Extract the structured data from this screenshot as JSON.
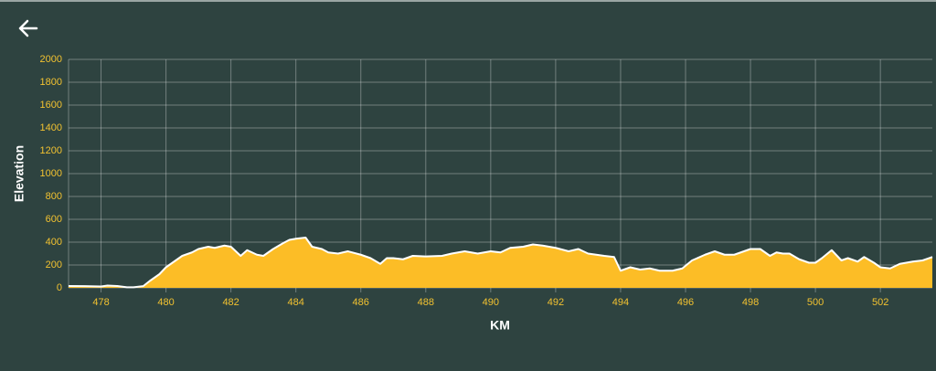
{
  "chart_data": {
    "type": "area",
    "x_label": "KM",
    "y_label": "Elevation",
    "x": [
      477.0,
      477.5,
      478.0,
      478.2,
      478.5,
      478.8,
      479.0,
      479.3,
      479.5,
      479.8,
      480.0,
      480.3,
      480.5,
      480.8,
      481.0,
      481.3,
      481.5,
      481.8,
      482.0,
      482.3,
      482.5,
      482.8,
      483.0,
      483.3,
      483.6,
      483.8,
      484.0,
      484.3,
      484.5,
      484.8,
      485.0,
      485.3,
      485.6,
      486.0,
      486.3,
      486.6,
      486.8,
      487.0,
      487.3,
      487.6,
      488.0,
      488.5,
      488.8,
      489.2,
      489.6,
      490.0,
      490.3,
      490.6,
      491.0,
      491.3,
      491.6,
      492.0,
      492.4,
      492.7,
      493.0,
      493.5,
      493.8,
      494.0,
      494.3,
      494.6,
      494.9,
      495.2,
      495.6,
      495.9,
      496.2,
      496.6,
      496.9,
      497.2,
      497.5,
      497.8,
      498.0,
      498.3,
      498.6,
      498.8,
      499.0,
      499.2,
      499.5,
      499.8,
      500.0,
      500.2,
      500.5,
      500.8,
      501.0,
      501.3,
      501.5,
      501.8,
      502.0,
      502.3,
      502.6,
      503.0,
      503.3,
      503.6
    ],
    "series": [
      {
        "color": "#fcbd26",
        "values": [
          16,
          15,
          12,
          20,
          16,
          5,
          5,
          15,
          60,
          120,
          180,
          240,
          280,
          310,
          340,
          360,
          350,
          370,
          360,
          280,
          330,
          290,
          280,
          340,
          390,
          420,
          430,
          440,
          360,
          340,
          310,
          300,
          320,
          290,
          260,
          210,
          260,
          260,
          250,
          280,
          275,
          280,
          300,
          320,
          300,
          320,
          310,
          350,
          360,
          380,
          370,
          350,
          320,
          340,
          300,
          280,
          270,
          150,
          180,
          160,
          170,
          150,
          150,
          170,
          240,
          290,
          320,
          290,
          290,
          320,
          340,
          340,
          280,
          310,
          300,
          300,
          250,
          220,
          220,
          260,
          330,
          240,
          260,
          230,
          270,
          220,
          180,
          170,
          210,
          230,
          240,
          270
        ]
      }
    ],
    "xlim": [
      477,
      503.6
    ],
    "xticks": [
      478,
      480,
      482,
      484,
      486,
      488,
      490,
      492,
      494,
      496,
      498,
      500,
      502
    ],
    "ylim": [
      0,
      2000
    ],
    "yticks": [
      0,
      200,
      400,
      600,
      800,
      1000,
      1200,
      1400,
      1600,
      1800,
      2000
    ],
    "grid": true
  }
}
